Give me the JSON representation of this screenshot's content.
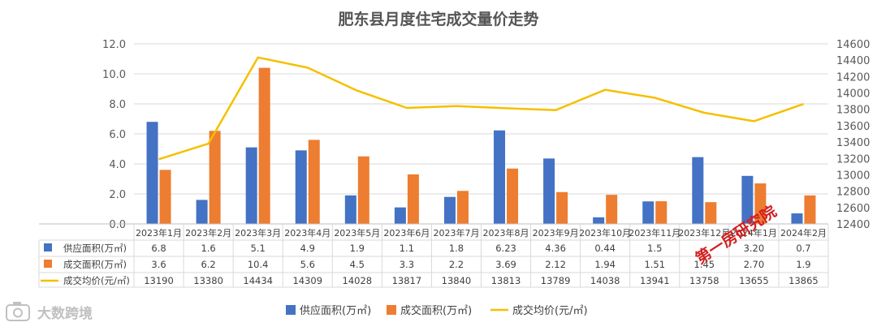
{
  "chart_data": {
    "type": "bar",
    "title": "肥东县月度住宅成交量价走势",
    "categories": [
      "2023年1月",
      "2023年2月",
      "2023年3月",
      "2023年4月",
      "2023年5月",
      "2023年6月",
      "2023年7月",
      "2023年8月",
      "2023年9月",
      "2023年10月",
      "2023年11月",
      "2023年12月",
      "2024年1月",
      "2024年2月"
    ],
    "series": [
      {
        "name": "供应面积(万㎡)",
        "type": "bar",
        "axis": "left",
        "color": "#4472C4",
        "values": [
          6.8,
          1.6,
          5.1,
          4.9,
          1.9,
          1.1,
          1.8,
          6.23,
          4.36,
          0.44,
          1.5,
          4.45,
          3.2,
          0.7
        ],
        "labels": [
          "6.8",
          "1.6",
          "5.1",
          "4.9",
          "1.9",
          "1.1",
          "1.8",
          "6.23",
          "4.36",
          "0.44",
          "1.5",
          "",
          "3.20",
          "0.7"
        ]
      },
      {
        "name": "成交面积(万㎡)",
        "type": "bar",
        "axis": "left",
        "color": "#ED7D31",
        "values": [
          3.6,
          6.2,
          10.4,
          5.6,
          4.5,
          3.3,
          2.2,
          3.69,
          2.12,
          1.94,
          1.51,
          1.45,
          2.7,
          1.9
        ],
        "labels": [
          "3.6",
          "6.2",
          "10.4",
          "5.6",
          "4.5",
          "3.3",
          "2.2",
          "3.69",
          "2.12",
          "1.94",
          "1.51",
          "1.45",
          "2.70",
          "1.9"
        ]
      },
      {
        "name": "成交均价(元/㎡)",
        "type": "line",
        "axis": "right",
        "color": "#F5C000",
        "values": [
          13190,
          13380,
          14434,
          14309,
          14028,
          13817,
          13840,
          13813,
          13789,
          14038,
          13941,
          13758,
          13655,
          13865
        ],
        "labels": [
          "13190",
          "13380",
          "14434",
          "14309",
          "14028",
          "13817",
          "13840",
          "13813",
          "13789",
          "14038",
          "13941",
          "13758",
          "13655",
          "13865"
        ]
      }
    ],
    "left_axis": {
      "min": 0,
      "max": 12,
      "step": 2,
      "ticks": [
        "0.0",
        "2.0",
        "4.0",
        "6.0",
        "8.0",
        "10.0",
        "12.0"
      ]
    },
    "right_axis": {
      "min": 12400,
      "max": 14600,
      "step": 200,
      "ticks": [
        "12400",
        "12600",
        "12800",
        "13000",
        "13200",
        "13400",
        "13600",
        "13800",
        "14000",
        "14200",
        "14400",
        "14600"
      ]
    },
    "legend": {
      "placement": "bottom",
      "items": [
        "供应面积(万㎡)",
        "成交面积(万㎡)",
        "成交均价(元/㎡)"
      ]
    },
    "grid": true
  },
  "watermark": {
    "text": "大数跨境",
    "icon": "camera-icon"
  },
  "stamp": {
    "text": "第一房研究院",
    "color": "#d21f1f"
  }
}
